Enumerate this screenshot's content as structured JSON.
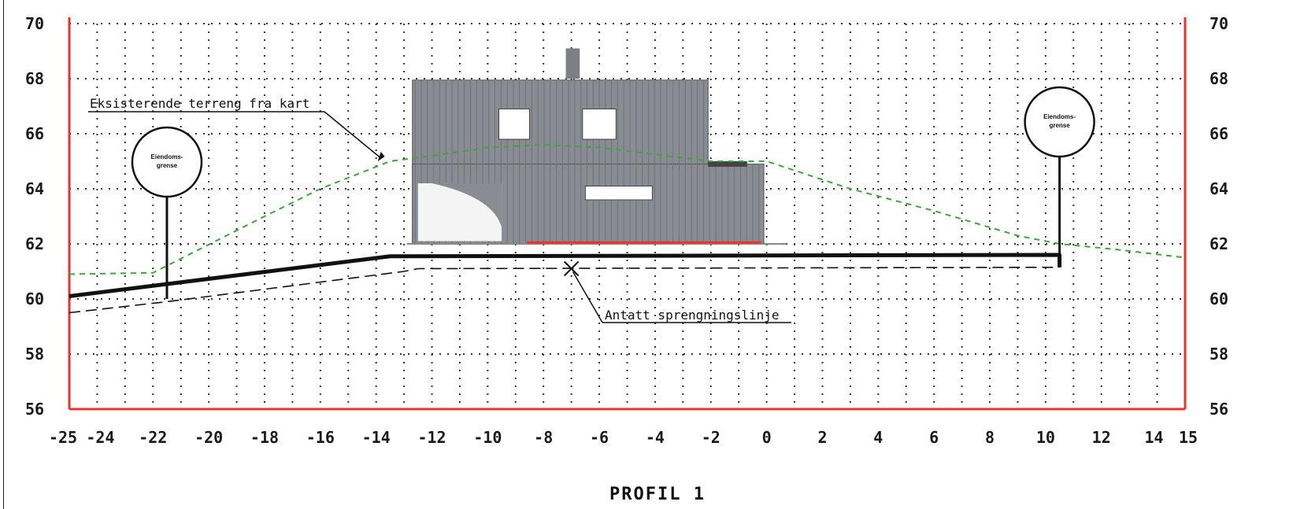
{
  "title": "PROFIL 1",
  "colors": {
    "grid": "#333333",
    "frame": "#e8342e",
    "terrain": "#3aa83a",
    "new_ground": "#111111",
    "blast_line": "#111111",
    "house_wall": "#8a8c93",
    "window": "#ffffff",
    "red_floor": "#e8342e"
  },
  "chart_data": {
    "type": "line",
    "title": "PROFIL 1",
    "xlabel": "",
    "ylabel": "",
    "xlim": [
      -25,
      15
    ],
    "ylim": [
      56,
      70
    ],
    "grid": true,
    "x_ticks": [
      "-25",
      "-24",
      "-22",
      "-20",
      "-18",
      "-16",
      "-14",
      "-12",
      "-10",
      "-8",
      "-6",
      "-4",
      "-2",
      "0",
      "2",
      "4",
      "6",
      "8",
      "10",
      "12",
      "14",
      "15"
    ],
    "y_ticks": [
      "70",
      "68",
      "66",
      "64",
      "62",
      "60",
      "58",
      "56"
    ],
    "series": [
      {
        "name": "Eksisterende terreng fra kart",
        "style": "dashed",
        "color": "#3aa83a",
        "x": [
          -25,
          -22,
          -18,
          -16,
          -13.5,
          -12,
          -10,
          -8,
          -6,
          -2,
          0,
          3,
          6,
          9,
          10.5,
          12.5,
          15
        ],
        "y": [
          60.9,
          60.95,
          63.0,
          64.0,
          65.0,
          65.2,
          65.5,
          65.6,
          65.5,
          65.0,
          65.0,
          64.0,
          63.2,
          62.3,
          62.0,
          61.8,
          61.5
        ]
      },
      {
        "name": "",
        "style": "solid",
        "color": "#111111",
        "x": [
          -25,
          -13.5,
          10.5,
          10.5
        ],
        "y": [
          60.1,
          61.55,
          61.6,
          61.15
        ]
      },
      {
        "name": "Antatt sprengningslinje",
        "style": "dashed",
        "color": "#111111",
        "x": [
          -25,
          -21.5,
          -13,
          -12.5,
          10.5
        ],
        "y": [
          59.5,
          59.9,
          61.0,
          61.1,
          61.15
        ]
      }
    ],
    "annotations": [
      {
        "text": "Eksisterende terreng fra kart",
        "points_to": [
          -14,
          65.0
        ]
      },
      {
        "text": "Antatt sprengningslinje",
        "points_to": [
          -7,
          61.1
        ]
      }
    ],
    "markers": [
      {
        "type": "x",
        "x": -7,
        "y": 61.1
      }
    ],
    "property_boundaries": [
      {
        "label_line1": "Eiendoms-",
        "label_line2": "grense",
        "x": -21.5
      },
      {
        "label_line1": "Eiendoms-",
        "label_line2": "grense",
        "x": 10.5
      }
    ]
  }
}
